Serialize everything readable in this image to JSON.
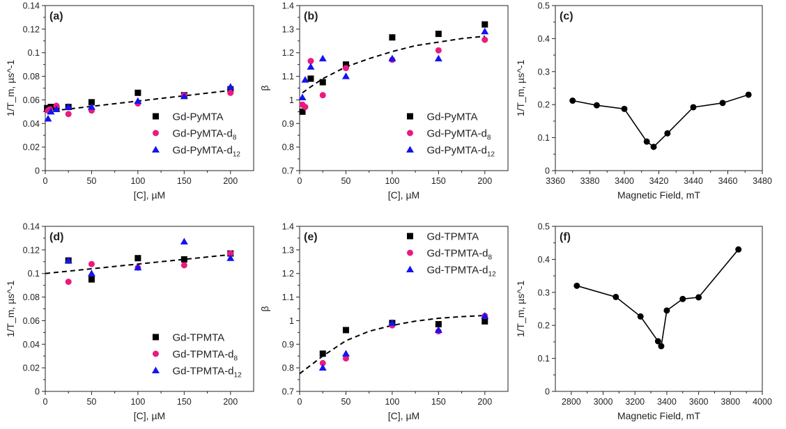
{
  "colors": {
    "series1": "#000000",
    "series2": "#ea1a7f",
    "series3": "#1414f0",
    "fit": "#000000"
  },
  "chart_data": [
    {
      "panel": "(a)",
      "type": "scatter",
      "xlabel": "[C], µM",
      "ylabel": "1/T_m, µs^-1",
      "xlim": [
        0,
        225
      ],
      "ylim": [
        0,
        0.14
      ],
      "xticks": [
        "0",
        "50",
        "100",
        "150",
        "200"
      ],
      "xtick_values": [
        0,
        50,
        100,
        150,
        200
      ],
      "yticks": [
        "0",
        "0.02",
        "0.04",
        "0.06",
        "0.08",
        "0.1",
        "0.12",
        "0.14"
      ],
      "ytick_values": [
        0,
        0.02,
        0.04,
        0.06,
        0.08,
        0.1,
        0.12,
        0.14
      ],
      "legend": "bottom-right",
      "series": [
        {
          "name": "Gd-PyMTA",
          "marker": "square",
          "x": [
            2,
            6,
            12,
            25,
            50,
            100,
            150,
            200
          ],
          "y": [
            0.053,
            0.054,
            0.053,
            0.054,
            0.058,
            0.066,
            0.064,
            0.069
          ]
        },
        {
          "name": "Gd-PyMTA-d8",
          "marker": "circle",
          "x": [
            3,
            5,
            12,
            25,
            50,
            100,
            150,
            200
          ],
          "y": [
            0.051,
            0.052,
            0.055,
            0.048,
            0.051,
            0.057,
            0.064,
            0.066
          ]
        },
        {
          "name": "Gd-PyMTA-d12",
          "marker": "triangle",
          "x": [
            3,
            6,
            12,
            25,
            50,
            100,
            150,
            200
          ],
          "y": [
            0.044,
            0.05,
            0.052,
            0.054,
            0.054,
            0.059,
            0.063,
            0.071
          ]
        }
      ],
      "fit": {
        "x": [
          0,
          200
        ],
        "y": [
          0.05,
          0.068
        ]
      }
    },
    {
      "panel": "(b)",
      "type": "scatter",
      "xlabel": "[C], µM",
      "ylabel": "β",
      "xlim": [
        0,
        225
      ],
      "ylim": [
        0.7,
        1.4
      ],
      "xticks": [
        "0",
        "50",
        "100",
        "150",
        "200"
      ],
      "xtick_values": [
        0,
        50,
        100,
        150,
        200
      ],
      "yticks": [
        "0.7",
        "0.8",
        "0.9",
        "1",
        "1.1",
        "1.2",
        "1.3",
        "1.4"
      ],
      "ytick_values": [
        0.7,
        0.8,
        0.9,
        1,
        1.1,
        1.2,
        1.3,
        1.4
      ],
      "legend": "bottom-right",
      "series": [
        {
          "name": "Gd-PyMTA",
          "marker": "square",
          "x": [
            3,
            12,
            25,
            50,
            100,
            150,
            200
          ],
          "y": [
            0.95,
            1.09,
            1.075,
            1.15,
            1.265,
            1.28,
            1.32
          ]
        },
        {
          "name": "Gd-PyMTA-d8",
          "marker": "circle",
          "x": [
            3,
            6,
            12,
            25,
            50,
            100,
            150,
            200
          ],
          "y": [
            0.98,
            0.97,
            1.165,
            1.02,
            1.135,
            1.17,
            1.21,
            1.255
          ]
        },
        {
          "name": "Gd-PyMTA-d12",
          "marker": "triangle",
          "x": [
            3,
            6,
            12,
            25,
            50,
            100,
            150,
            200
          ],
          "y": [
            1.01,
            1.085,
            1.14,
            1.175,
            1.1,
            1.175,
            1.175,
            1.29
          ]
        }
      ],
      "fit": {
        "x": [
          3,
          10,
          25,
          50,
          75,
          100,
          125,
          150,
          175,
          200
        ],
        "y": [
          1.03,
          1.05,
          1.09,
          1.14,
          1.175,
          1.205,
          1.23,
          1.245,
          1.26,
          1.27
        ]
      }
    },
    {
      "panel": "(c)",
      "type": "line",
      "xlabel": "Magnetic Field, mT",
      "ylabel": "1/T_m, µs^-1",
      "xlim": [
        3360,
        3480
      ],
      "ylim": [
        0,
        0.5
      ],
      "xticks": [
        "3360",
        "3380",
        "3400",
        "3420",
        "3440",
        "3460",
        "3480"
      ],
      "xtick_values": [
        3360,
        3380,
        3400,
        3420,
        3440,
        3460,
        3480
      ],
      "yticks": [
        "0",
        "0.1",
        "0.2",
        "0.3",
        "0.4",
        "0.5"
      ],
      "ytick_values": [
        0,
        0.1,
        0.2,
        0.3,
        0.4,
        0.5
      ],
      "series": [
        {
          "name": "",
          "marker": "circle",
          "x": [
            3370,
            3384,
            3400,
            3413,
            3417,
            3425,
            3440,
            3457,
            3472
          ],
          "y": [
            0.212,
            0.198,
            0.187,
            0.088,
            0.072,
            0.113,
            0.192,
            0.205,
            0.23
          ]
        }
      ]
    },
    {
      "panel": "(d)",
      "type": "scatter",
      "xlabel": "[C], µM",
      "ylabel": "1/T_m, µs^-1",
      "xlim": [
        0,
        225
      ],
      "ylim": [
        0,
        0.14
      ],
      "xticks": [
        "0",
        "50",
        "100",
        "150",
        "200"
      ],
      "xtick_values": [
        0,
        50,
        100,
        150,
        200
      ],
      "yticks": [
        "0",
        "0.02",
        "0.04",
        "0.06",
        "0.08",
        "0.1",
        "0.12",
        "0.14"
      ],
      "ytick_values": [
        0,
        0.02,
        0.04,
        0.06,
        0.08,
        0.1,
        0.12,
        0.14
      ],
      "legend": "bottom-right",
      "series": [
        {
          "name": "Gd-TPMTA",
          "marker": "square",
          "x": [
            25,
            50,
            100,
            150,
            200
          ],
          "y": [
            0.111,
            0.095,
            0.113,
            0.112,
            0.117
          ]
        },
        {
          "name": "Gd-TPMTA-d8",
          "marker": "circle",
          "x": [
            25,
            50,
            100,
            150,
            200
          ],
          "y": [
            0.093,
            0.108,
            0.105,
            0.107,
            0.117
          ]
        },
        {
          "name": "Gd-TPMTA-d12",
          "marker": "triangle",
          "x": [
            25,
            50,
            100,
            150,
            200
          ],
          "y": [
            0.111,
            0.1,
            0.105,
            0.127,
            0.113
          ]
        }
      ],
      "fit": {
        "x": [
          0,
          200
        ],
        "y": [
          0.1,
          0.116
        ]
      }
    },
    {
      "panel": "(e)",
      "type": "scatter",
      "xlabel": "[C], µM",
      "ylabel": "β",
      "xlim": [
        0,
        225
      ],
      "ylim": [
        0.7,
        1.4
      ],
      "xticks": [
        "0",
        "50",
        "100",
        "150",
        "200"
      ],
      "xtick_values": [
        0,
        50,
        100,
        150,
        200
      ],
      "yticks": [
        "0.7",
        "0.8",
        "0.9",
        "1",
        "1.1",
        "1.2",
        "1.3",
        "1.4"
      ],
      "ytick_values": [
        0.7,
        0.8,
        0.9,
        1,
        1.1,
        1.2,
        1.3,
        1.4
      ],
      "legend": "top-right",
      "series": [
        {
          "name": "Gd-TPMTA",
          "marker": "square",
          "x": [
            25,
            50,
            100,
            150,
            200
          ],
          "y": [
            0.86,
            0.96,
            0.99,
            0.985,
            0.997
          ]
        },
        {
          "name": "Gd-TPMTA-d8",
          "marker": "circle",
          "x": [
            25,
            50,
            100,
            150,
            200
          ],
          "y": [
            0.82,
            0.84,
            0.98,
            0.955,
            1.02
          ]
        },
        {
          "name": "Gd-TPMTA-d12",
          "marker": "triangle",
          "x": [
            25,
            50,
            100,
            150,
            200
          ],
          "y": [
            0.8,
            0.86,
            0.99,
            0.96,
            1.02
          ]
        }
      ],
      "fit": {
        "x": [
          0,
          25,
          50,
          75,
          100,
          125,
          150,
          175,
          200
        ],
        "y": [
          0.775,
          0.85,
          0.915,
          0.955,
          0.98,
          0.998,
          1.01,
          1.017,
          1.022
        ]
      }
    },
    {
      "panel": "(f)",
      "type": "line",
      "xlabel": "Magnetic Field, mT",
      "ylabel": "1/T_m, µs^-1",
      "xlim": [
        2700,
        4000
      ],
      "ylim": [
        0,
        0.5
      ],
      "xticks": [
        "2800",
        "3000",
        "3200",
        "3400",
        "3600",
        "3800",
        "4000"
      ],
      "xtick_values": [
        2800,
        3000,
        3200,
        3400,
        3600,
        3800,
        4000
      ],
      "yticks": [
        "0",
        "0.1",
        "0.2",
        "0.3",
        "0.4",
        "0.5"
      ],
      "ytick_values": [
        0,
        0.1,
        0.2,
        0.3,
        0.4,
        0.5
      ],
      "series": [
        {
          "name": "",
          "marker": "circle",
          "x": [
            2835,
            3080,
            3235,
            3345,
            3365,
            3400,
            3500,
            3600,
            3850
          ],
          "y": [
            0.32,
            0.286,
            0.227,
            0.152,
            0.137,
            0.245,
            0.28,
            0.285,
            0.43
          ]
        }
      ]
    }
  ]
}
